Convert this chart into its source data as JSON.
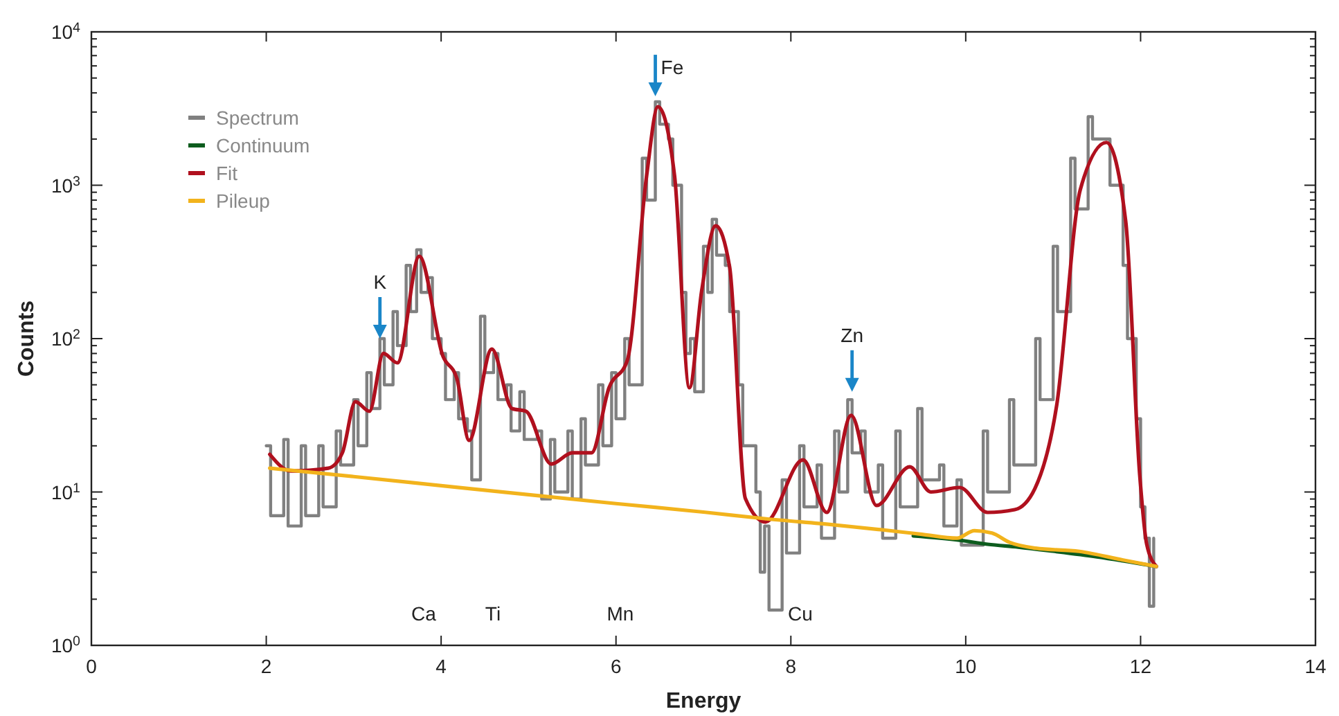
{
  "chart_data": {
    "type": "line",
    "xlabel": "Energy",
    "ylabel": "Counts",
    "log": "y",
    "legend": "top left",
    "grid": false,
    "xlim": [
      0,
      14
    ],
    "xticks": [
      0,
      2,
      4,
      6,
      8,
      10,
      12,
      14
    ],
    "ylim": [
      1,
      10000
    ],
    "yticks": [
      {
        "value": 1,
        "label": "10$^{0}$"
      },
      {
        "value": 2,
        "label": null
      },
      {
        "value": 3,
        "label": null
      },
      {
        "value": 4,
        "label": null
      },
      {
        "value": 5,
        "label": null
      },
      {
        "value": 6,
        "label": null
      },
      {
        "value": 7,
        "label": null
      },
      {
        "value": 8,
        "label": null
      },
      {
        "value": 9,
        "label": null
      },
      {
        "value": 10,
        "label": "10$^{1}$"
      },
      {
        "value": 20,
        "label": null
      },
      {
        "value": 30,
        "label": null
      },
      {
        "value": 40,
        "label": null
      },
      {
        "value": 50,
        "label": null
      },
      {
        "value": 60,
        "label": null
      },
      {
        "value": 70,
        "label": null
      },
      {
        "value": 80,
        "label": null
      },
      {
        "value": 90,
        "label": null
      },
      {
        "value": 100,
        "label": "10$^{2}$"
      },
      {
        "value": 200,
        "label": null
      },
      {
        "value": 300,
        "label": null
      },
      {
        "value": 400,
        "label": null
      },
      {
        "value": 500,
        "label": null
      },
      {
        "value": 600,
        "label": null
      },
      {
        "value": 700,
        "label": null
      },
      {
        "value": 800,
        "label": null
      },
      {
        "value": 900,
        "label": null
      },
      {
        "value": 1000,
        "label": "10$^{3}$"
      },
      {
        "value": 2000,
        "label": null
      },
      {
        "value": 3000,
        "label": null
      },
      {
        "value": 4000,
        "label": null
      },
      {
        "value": 5000,
        "label": null
      },
      {
        "value": 6000,
        "label": null
      },
      {
        "value": 7000,
        "label": null
      },
      {
        "value": 8000,
        "label": null
      },
      {
        "value": 9000,
        "label": null
      },
      {
        "value": 10000,
        "label": "10$^{4}$"
      }
    ],
    "series": [
      {
        "name": "Spectrum",
        "type": "step",
        "color": "#808080",
        "x": [
          2.0,
          2.05,
          2.2,
          2.25,
          2.4,
          2.45,
          2.6,
          2.65,
          2.8,
          2.85,
          3.0,
          3.05,
          3.15,
          3.2,
          3.3,
          3.35,
          3.45,
          3.5,
          3.6,
          3.65,
          3.72,
          3.77,
          3.85,
          3.9,
          4.0,
          4.05,
          4.15,
          4.2,
          4.3,
          4.35,
          4.45,
          4.5,
          4.6,
          4.65,
          4.75,
          4.8,
          4.9,
          4.95,
          5.1,
          5.15,
          5.25,
          5.3,
          5.45,
          5.5,
          5.6,
          5.65,
          5.8,
          5.85,
          5.95,
          6.0,
          6.1,
          6.15,
          6.3,
          6.35,
          6.45,
          6.5,
          6.6,
          6.65,
          6.75,
          6.8,
          6.85,
          6.9,
          7.0,
          7.05,
          7.1,
          7.15,
          7.25,
          7.3,
          7.4,
          7.45,
          7.6,
          7.65,
          7.7,
          7.75,
          7.9,
          7.95,
          8.1,
          8.15,
          8.3,
          8.35,
          8.5,
          8.55,
          8.65,
          8.7,
          8.8,
          8.85,
          9.0,
          9.05,
          9.2,
          9.25,
          9.45,
          9.5,
          9.7,
          9.75,
          9.9,
          9.95,
          10.2,
          10.25,
          10.5,
          10.55,
          10.8,
          10.85,
          11.0,
          11.05,
          11.2,
          11.25,
          11.4,
          11.45,
          11.6,
          11.65,
          11.8,
          11.85,
          11.95,
          12.0,
          12.05,
          12.1,
          12.15
        ],
        "values": [
          20,
          7,
          22,
          6,
          20,
          7,
          20,
          8,
          25,
          15,
          40,
          20,
          60,
          35,
          100,
          50,
          150,
          90,
          300,
          150,
          380,
          200,
          250,
          100,
          80,
          40,
          60,
          30,
          25,
          12,
          140,
          60,
          80,
          40,
          50,
          25,
          45,
          22,
          25,
          9,
          22,
          10,
          25,
          9,
          30,
          15,
          50,
          20,
          60,
          30,
          100,
          50,
          1500,
          800,
          3500,
          2500,
          2000,
          1000,
          200,
          80,
          100,
          45,
          400,
          200,
          600,
          350,
          300,
          150,
          50,
          20,
          10,
          3,
          6,
          1.7,
          12,
          4,
          20,
          8,
          15,
          5,
          25,
          10,
          40,
          18,
          25,
          10,
          15,
          5,
          25,
          8,
          35,
          12,
          15,
          6,
          12,
          4.5,
          25,
          10,
          40,
          15,
          100,
          40,
          400,
          150,
          1500,
          700,
          2800,
          2000,
          2000,
          1000,
          300,
          100,
          30,
          8,
          5,
          1.8,
          5
        ]
      },
      {
        "name": "Continuum",
        "color": "#0d5c1e",
        "x": [
          9.4,
          9.93,
          10.25,
          10.6,
          11.0,
          11.5,
          12.18
        ],
        "values": [
          5.17,
          4.85,
          4.56,
          4.37,
          4.11,
          3.78,
          3.27
        ]
      },
      {
        "name": "Fit",
        "color": "#b0101e",
        "x": [
          2.04,
          2.28,
          2.71,
          2.87,
          3.02,
          3.18,
          3.34,
          3.5,
          3.75,
          4.02,
          4.18,
          4.32,
          4.58,
          4.81,
          4.97,
          5.26,
          5.5,
          5.72,
          5.92,
          6.13,
          6.35,
          6.48,
          6.67,
          6.84,
          6.98,
          7.14,
          7.3,
          7.48,
          7.71,
          8.14,
          8.41,
          8.69,
          8.98,
          9.36,
          9.6,
          9.93,
          10.25,
          10.56,
          10.79,
          11.04,
          11.31,
          11.61,
          11.83,
          11.99,
          12.07,
          12.18
        ],
        "values": [
          17.6,
          13.7,
          14.3,
          18,
          38.8,
          33.6,
          80,
          69.5,
          344,
          77,
          55,
          21.7,
          85.5,
          35,
          33.6,
          15.2,
          18,
          18,
          47.8,
          72.4,
          1150,
          3250,
          1150,
          47.8,
          205,
          544,
          292,
          9.06,
          6.37,
          16.2,
          7.36,
          31.6,
          8.17,
          14.6,
          10,
          10.7,
          7.36,
          7.67,
          10.5,
          36.6,
          935,
          1900,
          580,
          12.9,
          4.56,
          3.27
        ]
      },
      {
        "name": "Pileup",
        "color": "#f2b31c",
        "x": [
          2.04,
          3,
          4,
          5,
          6,
          7,
          7.7,
          8.5,
          9,
          9.5,
          9.9,
          10.1,
          10.3,
          10.5,
          10.8,
          11.3,
          11.8,
          12.18
        ],
        "values": [
          14.3,
          12.6,
          11,
          9.6,
          8.4,
          7.4,
          6.7,
          6.1,
          5.7,
          5.3,
          5.0,
          5.6,
          5.4,
          4.7,
          4.3,
          4.1,
          3.6,
          3.27
        ]
      }
    ],
    "annotations": [
      {
        "text": "K",
        "x": 3.3,
        "y": 100
      },
      {
        "text": "Fe",
        "x": 6.45,
        "y": 3800
      },
      {
        "text": "Zn",
        "x": 8.7,
        "y": 45
      },
      "Ca",
      "Ti",
      "Mn",
      "Cu"
    ]
  }
}
